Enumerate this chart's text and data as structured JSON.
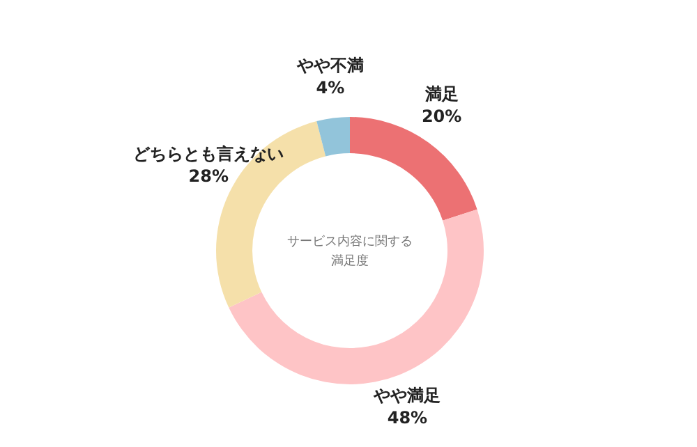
{
  "chart_data": {
    "type": "donut",
    "annotations": [
      "サービス内容に関する",
      "満足度"
    ],
    "categories": [
      "満足",
      "やや満足",
      "どちらとも言えない",
      "やや不満"
    ],
    "values": [
      20,
      48,
      28,
      4
    ],
    "colors": [
      "#ec7173",
      "#fec4c6",
      "#f5e0aa",
      "#92c4da"
    ],
    "value_labels": [
      "20%",
      "48%",
      "28%",
      "4%"
    ]
  }
}
